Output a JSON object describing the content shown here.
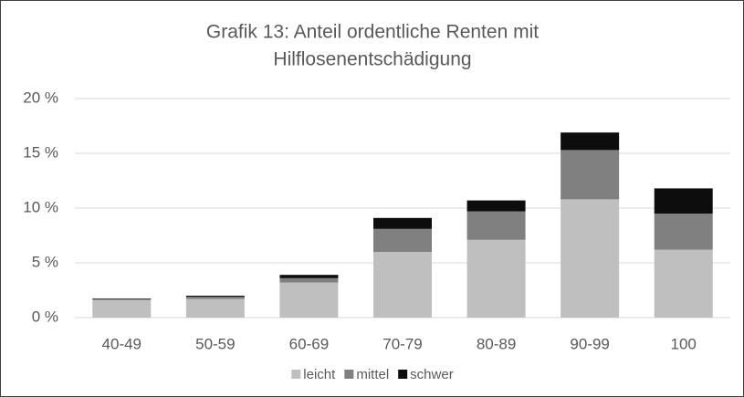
{
  "chart_data": {
    "type": "stacked_bar",
    "title": [
      "Grafik 13: Anteil ordentliche Renten mit",
      "Hilflosenentschädigung"
    ],
    "categories": [
      "40-49",
      "50-59",
      "60-69",
      "70-79",
      "80-89",
      "90-99",
      "100"
    ],
    "series": [
      {
        "name": "leicht",
        "color": "#bfbfbf",
        "values": [
          1.6,
          1.7,
          3.2,
          6.0,
          7.1,
          10.8,
          6.2
        ]
      },
      {
        "name": "mittel",
        "color": "#808080",
        "values": [
          0.1,
          0.2,
          0.4,
          2.1,
          2.6,
          4.5,
          3.3
        ]
      },
      {
        "name": "schwer",
        "color": "#0d0d0d",
        "values": [
          0.05,
          0.1,
          0.3,
          1.0,
          1.0,
          1.6,
          2.3
        ]
      }
    ],
    "ylim": [
      0,
      20
    ],
    "yticks": [
      {
        "value": 0,
        "label": "0 %"
      },
      {
        "value": 5,
        "label": "5 %"
      },
      {
        "value": 10,
        "label": "10 %"
      },
      {
        "value": 15,
        "label": "15 %"
      },
      {
        "value": 20,
        "label": "20 %"
      }
    ],
    "grid": true,
    "legend": "bottom"
  }
}
